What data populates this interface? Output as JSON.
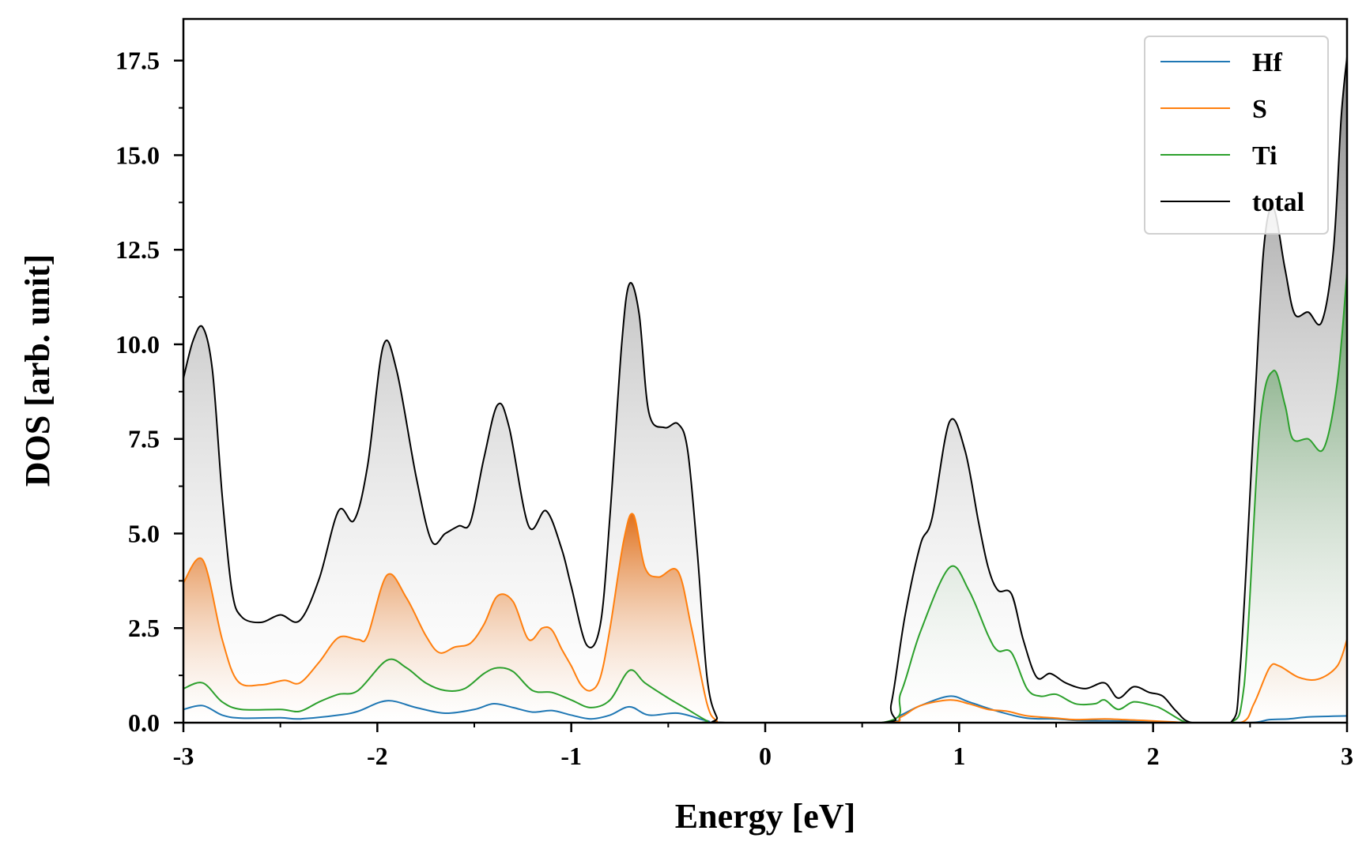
{
  "chart_data": {
    "type": "area",
    "title": "",
    "xlabel": "Energy [eV]",
    "ylabel": "DOS [arb. unit]",
    "xlim": [
      -3,
      3
    ],
    "ylim": [
      0,
      18.6
    ],
    "xticks": [
      -3,
      -2,
      -1,
      0,
      1,
      2,
      3
    ],
    "xtick_labels": [
      "-3",
      "-2",
      "-1",
      "0",
      "1",
      "2",
      "3"
    ],
    "xminor_step": 0.5,
    "yticks": [
      0,
      2.5,
      5,
      7.5,
      10,
      12.5,
      15,
      17.5
    ],
    "ytick_labels": [
      "0.0",
      "2.5",
      "5.0",
      "7.5",
      "10.0",
      "12.5",
      "15.0",
      "17.5"
    ],
    "yminor_step": 1.25,
    "grid": false,
    "legend_position": "top-right",
    "colors": {
      "Hf": "#1f77b4",
      "S": "#ff7f0e",
      "Ti": "#2ca02c",
      "total": "#000000"
    },
    "series": [
      {
        "name": "Hf",
        "color": "#1f77b4",
        "filled": false,
        "points": [
          [
            -3,
            0.35
          ],
          [
            -2.9,
            0.45
          ],
          [
            -2.8,
            0.2
          ],
          [
            -2.7,
            0.12
          ],
          [
            -2.5,
            0.13
          ],
          [
            -2.4,
            0.1
          ],
          [
            -2.2,
            0.2
          ],
          [
            -2.1,
            0.3
          ],
          [
            -1.95,
            0.58
          ],
          [
            -1.8,
            0.4
          ],
          [
            -1.65,
            0.25
          ],
          [
            -1.5,
            0.35
          ],
          [
            -1.4,
            0.5
          ],
          [
            -1.3,
            0.4
          ],
          [
            -1.2,
            0.28
          ],
          [
            -1.1,
            0.32
          ],
          [
            -1,
            0.2
          ],
          [
            -0.9,
            0.1
          ],
          [
            -0.8,
            0.2
          ],
          [
            -0.7,
            0.42
          ],
          [
            -0.6,
            0.2
          ],
          [
            -0.45,
            0.25
          ],
          [
            -0.3,
            0.05
          ],
          [
            -0.2,
            0
          ],
          [
            0.6,
            0
          ],
          [
            0.7,
            0.2
          ],
          [
            0.8,
            0.45
          ],
          [
            0.95,
            0.7
          ],
          [
            1.05,
            0.55
          ],
          [
            1.2,
            0.3
          ],
          [
            1.35,
            0.12
          ],
          [
            1.5,
            0.1
          ],
          [
            1.6,
            0.06
          ],
          [
            1.75,
            0.05
          ],
          [
            1.9,
            0.04
          ],
          [
            2.05,
            0.02
          ],
          [
            2.2,
            0
          ],
          [
            2.5,
            0
          ],
          [
            2.6,
            0.08
          ],
          [
            2.7,
            0.1
          ],
          [
            2.8,
            0.15
          ],
          [
            3,
            0.18
          ]
        ]
      },
      {
        "name": "S",
        "color": "#ff7f0e",
        "filled": true,
        "points": [
          [
            -3,
            3.7
          ],
          [
            -2.9,
            4.3
          ],
          [
            -2.8,
            2.2
          ],
          [
            -2.72,
            1.1
          ],
          [
            -2.6,
            1
          ],
          [
            -2.48,
            1.12
          ],
          [
            -2.4,
            1.05
          ],
          [
            -2.3,
            1.6
          ],
          [
            -2.2,
            2.25
          ],
          [
            -2.1,
            2.2
          ],
          [
            -2.05,
            2.3
          ],
          [
            -1.95,
            3.9
          ],
          [
            -1.85,
            3.3
          ],
          [
            -1.75,
            2.3
          ],
          [
            -1.68,
            1.85
          ],
          [
            -1.6,
            2
          ],
          [
            -1.52,
            2.1
          ],
          [
            -1.45,
            2.6
          ],
          [
            -1.38,
            3.35
          ],
          [
            -1.3,
            3.2
          ],
          [
            -1.22,
            2.2
          ],
          [
            -1.15,
            2.5
          ],
          [
            -1.1,
            2.45
          ],
          [
            -1.05,
            1.95
          ],
          [
            -1,
            1.5
          ],
          [
            -0.95,
            1
          ],
          [
            -0.9,
            0.85
          ],
          [
            -0.85,
            1.2
          ],
          [
            -0.8,
            2.5
          ],
          [
            -0.73,
            4.8
          ],
          [
            -0.68,
            5.5
          ],
          [
            -0.62,
            4.1
          ],
          [
            -0.55,
            3.85
          ],
          [
            -0.45,
            4
          ],
          [
            -0.38,
            2.5
          ],
          [
            -0.3,
            0.5
          ],
          [
            -0.25,
            0.05
          ],
          [
            -0.2,
            0
          ],
          [
            0.6,
            0
          ],
          [
            0.7,
            0.15
          ],
          [
            0.8,
            0.45
          ],
          [
            0.95,
            0.6
          ],
          [
            1.05,
            0.5
          ],
          [
            1.15,
            0.35
          ],
          [
            1.25,
            0.3
          ],
          [
            1.35,
            0.18
          ],
          [
            1.5,
            0.12
          ],
          [
            1.6,
            0.08
          ],
          [
            1.75,
            0.1
          ],
          [
            1.85,
            0.08
          ],
          [
            1.95,
            0.06
          ],
          [
            2.1,
            0.02
          ],
          [
            2.2,
            0
          ],
          [
            2.45,
            0
          ],
          [
            2.52,
            0.5
          ],
          [
            2.6,
            1.45
          ],
          [
            2.65,
            1.5
          ],
          [
            2.75,
            1.2
          ],
          [
            2.85,
            1.15
          ],
          [
            2.95,
            1.5
          ],
          [
            3,
            2.2
          ]
        ]
      },
      {
        "name": "Ti",
        "color": "#2ca02c",
        "filled": true,
        "points": [
          [
            -3,
            0.9
          ],
          [
            -2.9,
            1.05
          ],
          [
            -2.8,
            0.55
          ],
          [
            -2.7,
            0.35
          ],
          [
            -2.5,
            0.35
          ],
          [
            -2.4,
            0.3
          ],
          [
            -2.3,
            0.55
          ],
          [
            -2.2,
            0.75
          ],
          [
            -2.1,
            0.85
          ],
          [
            -1.95,
            1.65
          ],
          [
            -1.85,
            1.45
          ],
          [
            -1.75,
            1.05
          ],
          [
            -1.65,
            0.85
          ],
          [
            -1.55,
            0.9
          ],
          [
            -1.45,
            1.3
          ],
          [
            -1.38,
            1.45
          ],
          [
            -1.3,
            1.35
          ],
          [
            -1.2,
            0.85
          ],
          [
            -1.1,
            0.8
          ],
          [
            -1,
            0.6
          ],
          [
            -0.9,
            0.4
          ],
          [
            -0.8,
            0.6
          ],
          [
            -0.7,
            1.38
          ],
          [
            -0.62,
            1.05
          ],
          [
            -0.5,
            0.65
          ],
          [
            -0.4,
            0.35
          ],
          [
            -0.3,
            0.05
          ],
          [
            -0.25,
            0
          ],
          [
            0.6,
            0
          ],
          [
            0.7,
            0.8
          ],
          [
            0.8,
            2.4
          ],
          [
            0.95,
            4.1
          ],
          [
            1.05,
            3.5
          ],
          [
            1.15,
            2.3
          ],
          [
            1.2,
            1.9
          ],
          [
            1.27,
            1.85
          ],
          [
            1.35,
            0.9
          ],
          [
            1.42,
            0.7
          ],
          [
            1.5,
            0.75
          ],
          [
            1.6,
            0.5
          ],
          [
            1.7,
            0.5
          ],
          [
            1.75,
            0.6
          ],
          [
            1.82,
            0.35
          ],
          [
            1.9,
            0.55
          ],
          [
            2,
            0.45
          ],
          [
            2.05,
            0.35
          ],
          [
            2.15,
            0.05
          ],
          [
            2.2,
            0
          ],
          [
            2.4,
            0
          ],
          [
            2.47,
            1
          ],
          [
            2.55,
            7.8
          ],
          [
            2.62,
            9.3
          ],
          [
            2.68,
            8.4
          ],
          [
            2.72,
            7.5
          ],
          [
            2.8,
            7.5
          ],
          [
            2.88,
            7.25
          ],
          [
            2.95,
            9
          ],
          [
            3,
            11.9
          ]
        ]
      },
      {
        "name": "total",
        "color": "#000000",
        "filled": true,
        "points": [
          [
            -3,
            9.1
          ],
          [
            -2.95,
            10.1
          ],
          [
            -2.9,
            10.45
          ],
          [
            -2.85,
            9.3
          ],
          [
            -2.8,
            6
          ],
          [
            -2.75,
            3.5
          ],
          [
            -2.7,
            2.8
          ],
          [
            -2.6,
            2.65
          ],
          [
            -2.5,
            2.85
          ],
          [
            -2.4,
            2.7
          ],
          [
            -2.3,
            3.8
          ],
          [
            -2.2,
            5.6
          ],
          [
            -2.12,
            5.35
          ],
          [
            -2.05,
            6.8
          ],
          [
            -1.97,
            9.95
          ],
          [
            -1.9,
            9.3
          ],
          [
            -1.8,
            6.5
          ],
          [
            -1.72,
            4.8
          ],
          [
            -1.65,
            5
          ],
          [
            -1.58,
            5.2
          ],
          [
            -1.52,
            5.3
          ],
          [
            -1.45,
            7
          ],
          [
            -1.38,
            8.4
          ],
          [
            -1.32,
            7.8
          ],
          [
            -1.22,
            5.2
          ],
          [
            -1.13,
            5.6
          ],
          [
            -1.05,
            4.6
          ],
          [
            -1,
            3.6
          ],
          [
            -0.92,
            2.05
          ],
          [
            -0.85,
            2.6
          ],
          [
            -0.8,
            5.5
          ],
          [
            -0.74,
            10
          ],
          [
            -0.7,
            11.6
          ],
          [
            -0.65,
            10.8
          ],
          [
            -0.6,
            8.2
          ],
          [
            -0.52,
            7.8
          ],
          [
            -0.45,
            7.9
          ],
          [
            -0.4,
            7.2
          ],
          [
            -0.35,
            4.5
          ],
          [
            -0.3,
            1.2
          ],
          [
            -0.25,
            0.15
          ],
          [
            -0.2,
            0
          ],
          [
            0.6,
            0
          ],
          [
            0.65,
            0.5
          ],
          [
            0.72,
            2.8
          ],
          [
            0.8,
            4.7
          ],
          [
            0.86,
            5.4
          ],
          [
            0.95,
            7.95
          ],
          [
            1.03,
            7.2
          ],
          [
            1.1,
            5.3
          ],
          [
            1.15,
            4.1
          ],
          [
            1.2,
            3.5
          ],
          [
            1.27,
            3.4
          ],
          [
            1.33,
            2.2
          ],
          [
            1.4,
            1.2
          ],
          [
            1.47,
            1.3
          ],
          [
            1.55,
            1.05
          ],
          [
            1.65,
            0.9
          ],
          [
            1.75,
            1.05
          ],
          [
            1.82,
            0.65
          ],
          [
            1.9,
            0.95
          ],
          [
            1.98,
            0.8
          ],
          [
            2.05,
            0.7
          ],
          [
            2.12,
            0.3
          ],
          [
            2.2,
            0
          ],
          [
            2.4,
            0
          ],
          [
            2.45,
            1.5
          ],
          [
            2.52,
            8
          ],
          [
            2.57,
            12.5
          ],
          [
            2.62,
            13.6
          ],
          [
            2.68,
            12
          ],
          [
            2.73,
            10.8
          ],
          [
            2.8,
            10.85
          ],
          [
            2.87,
            10.6
          ],
          [
            2.93,
            12.5
          ],
          [
            2.97,
            16
          ],
          [
            3,
            17.6
          ]
        ]
      }
    ]
  }
}
